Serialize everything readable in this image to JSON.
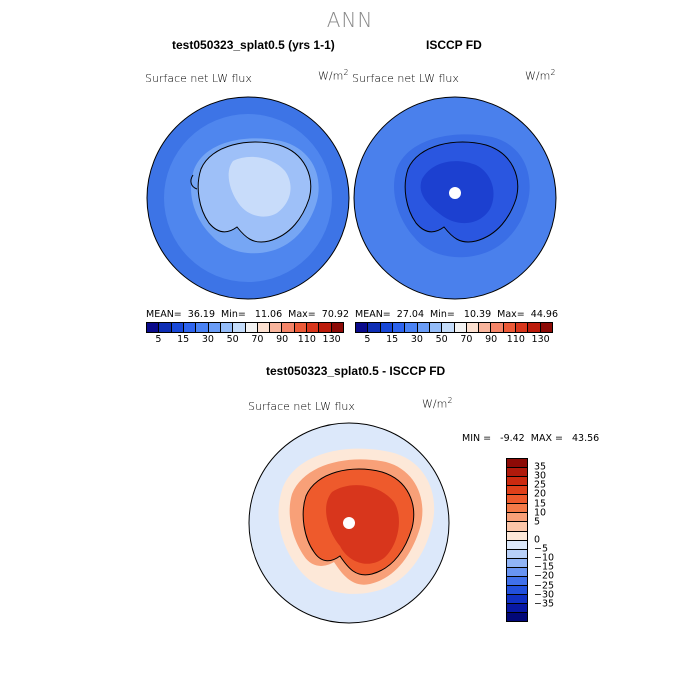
{
  "main_title": "ANN",
  "panels": [
    {
      "title": "test050323_splat0.5 (yrs 1-1)",
      "variable": "Surface net LW flux",
      "unit_base": "W/m",
      "unit_exp": "2",
      "stats": "MEAN=  36.19  Min=   11.06  Max=  70.92"
    },
    {
      "title": "ISCCP FD",
      "variable": "Surface net LW flux",
      "unit_base": "W/m",
      "unit_exp": "2",
      "stats": "MEAN=  27.04  Min=   10.39  Max=  44.96"
    },
    {
      "title": "test050323_splat0.5 - ISCCP FD",
      "variable": "Surface net LW flux",
      "unit_base": "W/m",
      "unit_exp": "2",
      "stats": "MIN =   -9.42  MAX =   43.56"
    }
  ],
  "colorbar_top": {
    "colors": [
      "#0a0a8c",
      "#0d2db4",
      "#1848d8",
      "#2e64ee",
      "#4a82f4",
      "#6a9cf6",
      "#94bcf8",
      "#c4dcfa",
      "#f2f2f2",
      "#fce0d0",
      "#f8b49c",
      "#f48468",
      "#ec5a38",
      "#d8361c",
      "#bc1c0c",
      "#8c0a06"
    ],
    "labels": [
      "5",
      "15",
      "30",
      "50",
      "70",
      "90",
      "110",
      "130"
    ]
  },
  "colorbar_diff": {
    "colors": [
      "#8c0a06",
      "#b01a0c",
      "#cc2a10",
      "#e0401a",
      "#ee5a2c",
      "#f47a48",
      "#f8a078",
      "#fcc6a8",
      "#fde8d8",
      "#dce8fa",
      "#b8d0f8",
      "#90b4f6",
      "#6894f2",
      "#4070ea",
      "#2250dc",
      "#1030c4",
      "#0818a4",
      "#020878"
    ],
    "labels": [
      "35",
      "30",
      "25",
      "20",
      "15",
      "10",
      "5",
      "0",
      "−5",
      "−10",
      "−15",
      "−20",
      "−25",
      "−30",
      "−35"
    ]
  },
  "map_colors": {
    "ocean_a": "#4f86ee",
    "ocean_a_outer": "#3d74e6",
    "ring_a": "#76a6f4",
    "land_a": "#9ec0f8",
    "land_a_light": "#c8dcfa",
    "ocean_b": "#4a80ec",
    "ring_b": "#3a6ee6",
    "land_b": "#2a56e0",
    "land_b_dark": "#1c40d0",
    "diff_ocean": "#dce8fa",
    "diff_ring": "#fde8d8",
    "diff_land_outer": "#f8a078",
    "diff_land": "#ee5a2c",
    "diff_land_inner": "#d8361c"
  }
}
